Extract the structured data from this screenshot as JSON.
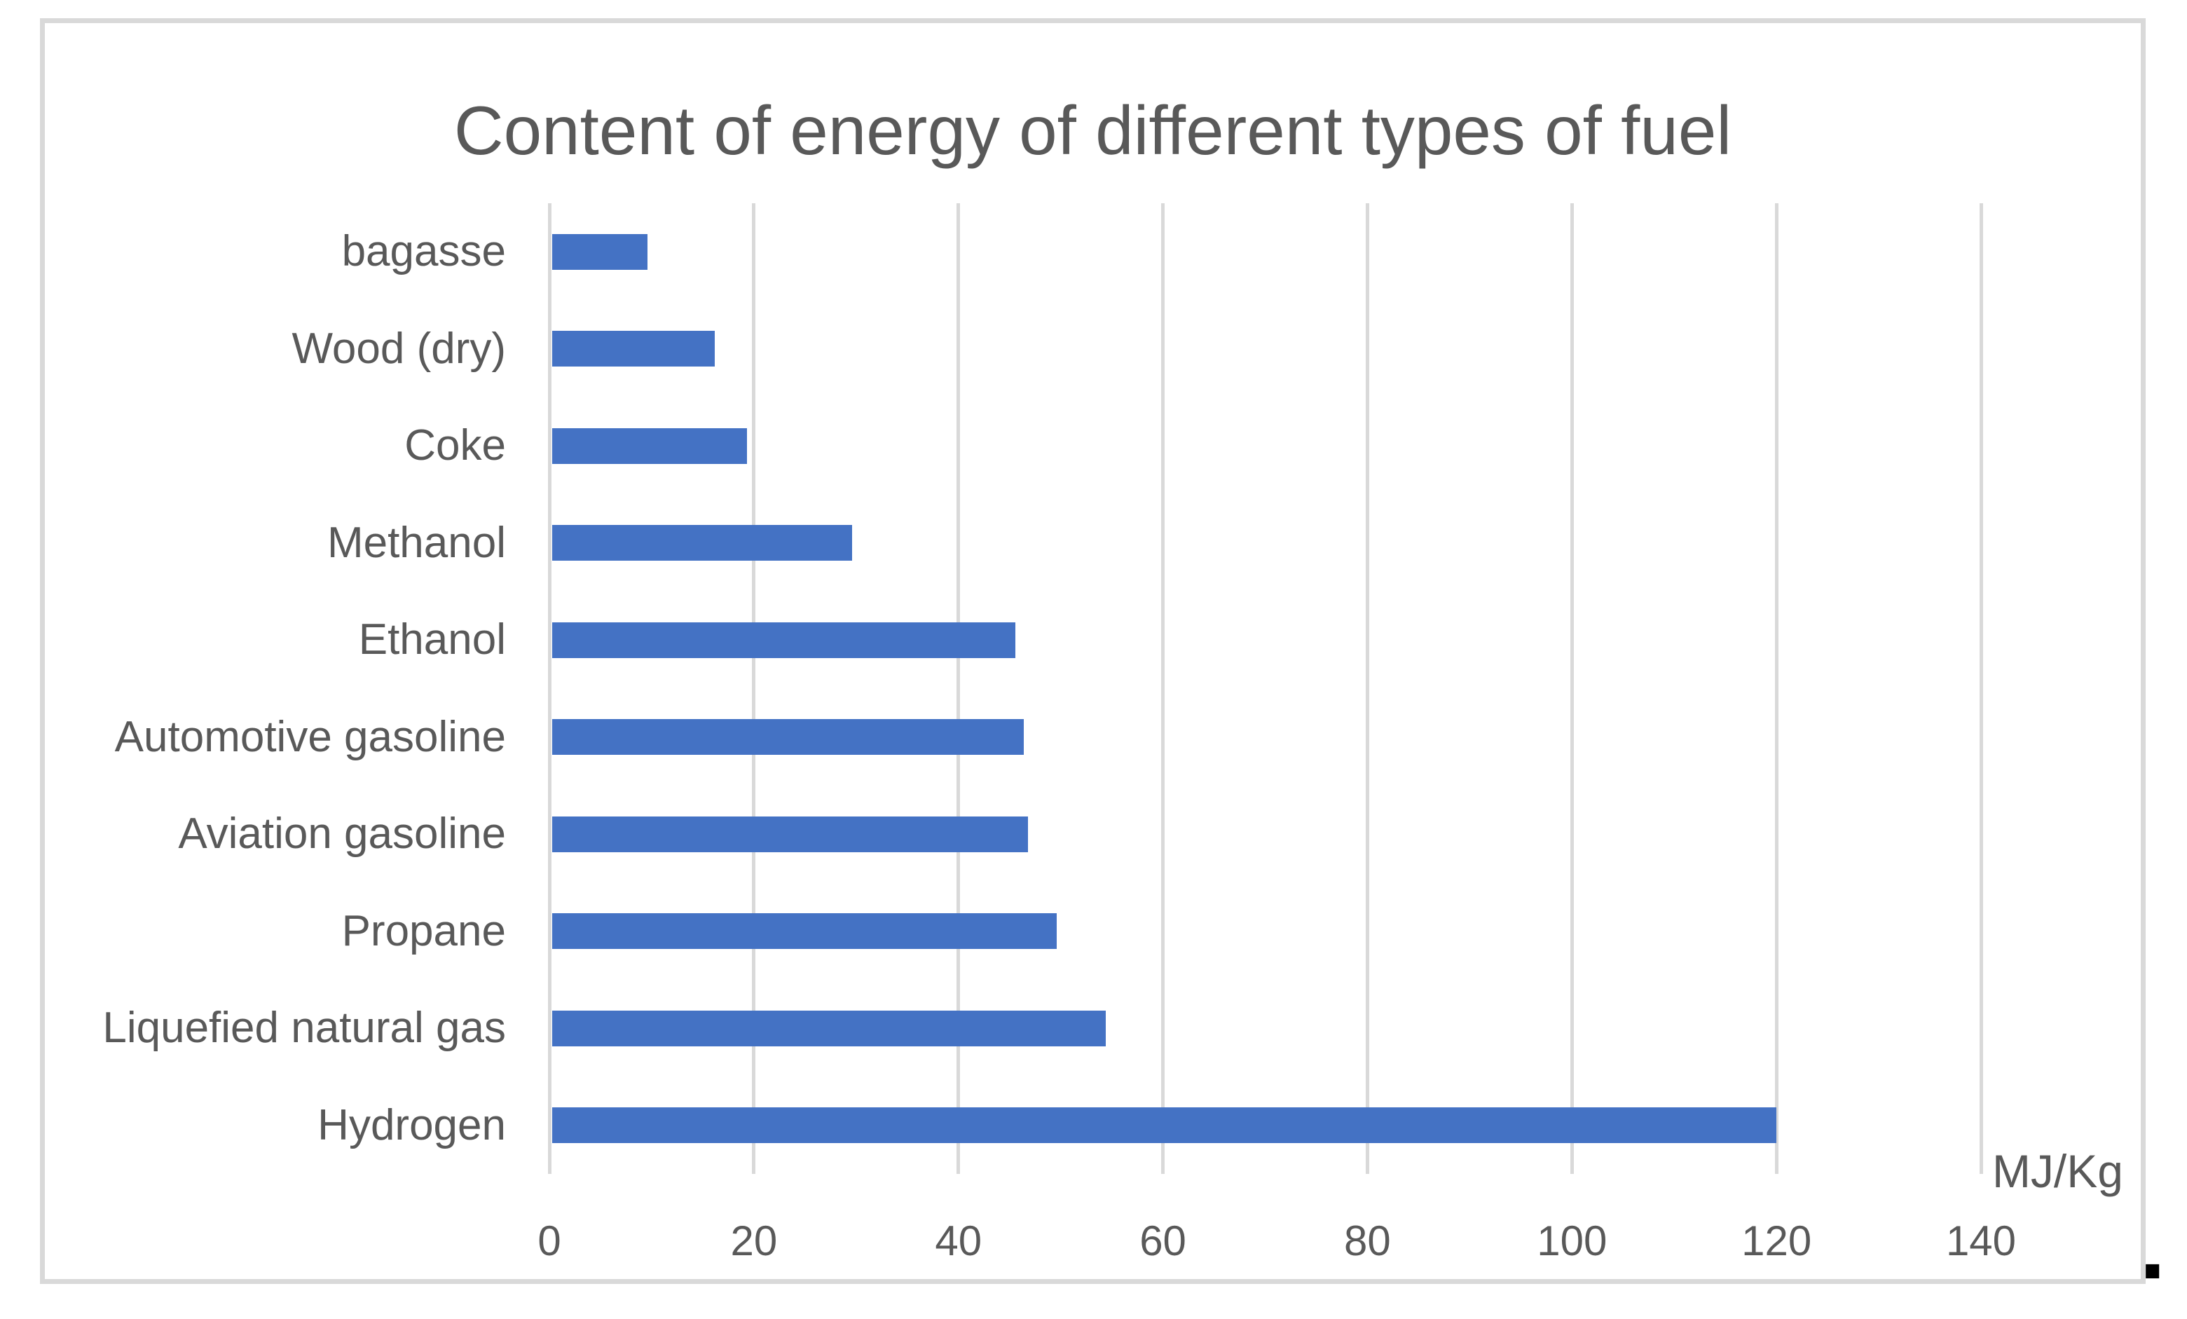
{
  "chart_data": {
    "type": "bar",
    "orientation": "horizontal",
    "title": "Content of energy of different types of fuel",
    "xlabel": "MJ/Kg",
    "ylabel": "",
    "xlim": [
      0,
      140
    ],
    "x_ticks": [
      0,
      20,
      40,
      60,
      80,
      100,
      120,
      140
    ],
    "grid": true,
    "legend": "none",
    "categories": [
      "bagasse",
      "Wood (dry)",
      "Coke",
      "Methanol",
      "Ethanol",
      "Automotive gasoline",
      "Aviation gasoline",
      "Propane",
      "Liquefied natural gas",
      "Hydrogen"
    ],
    "values": [
      9.6,
      16.2,
      19.3,
      29.6,
      45.6,
      46.4,
      46.8,
      49.6,
      54.4,
      120
    ],
    "colors": {
      "bar": "#4472C4",
      "gridline": "#D9D9D9",
      "border": "#D9D9D9",
      "text": "#595959"
    }
  },
  "footer": {
    "trailing_period": "."
  }
}
